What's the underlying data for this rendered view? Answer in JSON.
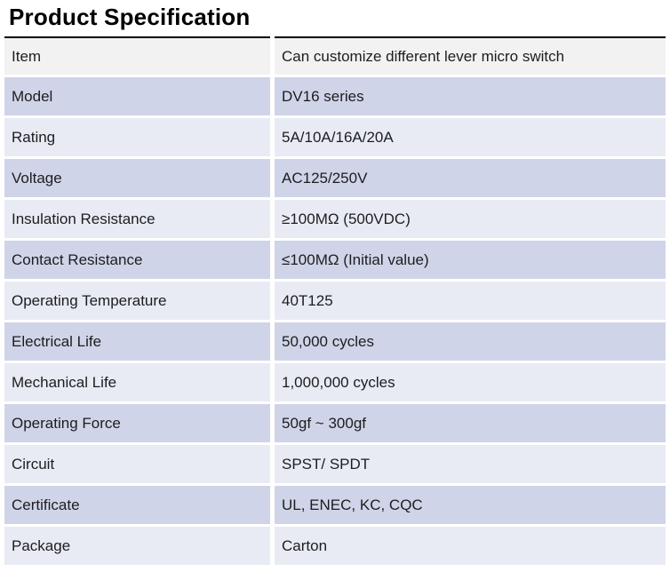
{
  "page": {
    "title": "Product Specification"
  },
  "table": {
    "rows": [
      {
        "label": "Item",
        "value": "Can customize different lever micro switch"
      },
      {
        "label": "Model",
        "value": "DV16 series"
      },
      {
        "label": "Rating",
        "value": "5A/10A/16A/20A"
      },
      {
        "label": "Voltage",
        "value": "AC125/250V"
      },
      {
        "label": "Insulation Resistance",
        "value": "≥100MΩ (500VDC)"
      },
      {
        "label": "Contact Resistance",
        "value": "≤100MΩ (Initial value)"
      },
      {
        "label": "Operating Temperature",
        "value": "40T125"
      },
      {
        "label": "Electrical Life",
        "value": "50,000 cycles"
      },
      {
        "label": "Mechanical Life",
        "value": "1,000,000 cycles"
      },
      {
        "label": "Operating Force",
        "value": "50gf ~ 300gf"
      },
      {
        "label": "Circuit",
        "value": "SPST/ SPDT"
      },
      {
        "label": "Certificate",
        "value": "UL, ENEC, KC, CQC"
      },
      {
        "label": "Package",
        "value": "Carton"
      }
    ]
  },
  "colors": {
    "header_row_bg": "#f2f2f2",
    "row_dark_bg": "#d0d4e8",
    "row_light_bg": "#e9ebf4",
    "top_border": "#000000",
    "text": "#1d1d1f",
    "gutter": "#ffffff"
  }
}
